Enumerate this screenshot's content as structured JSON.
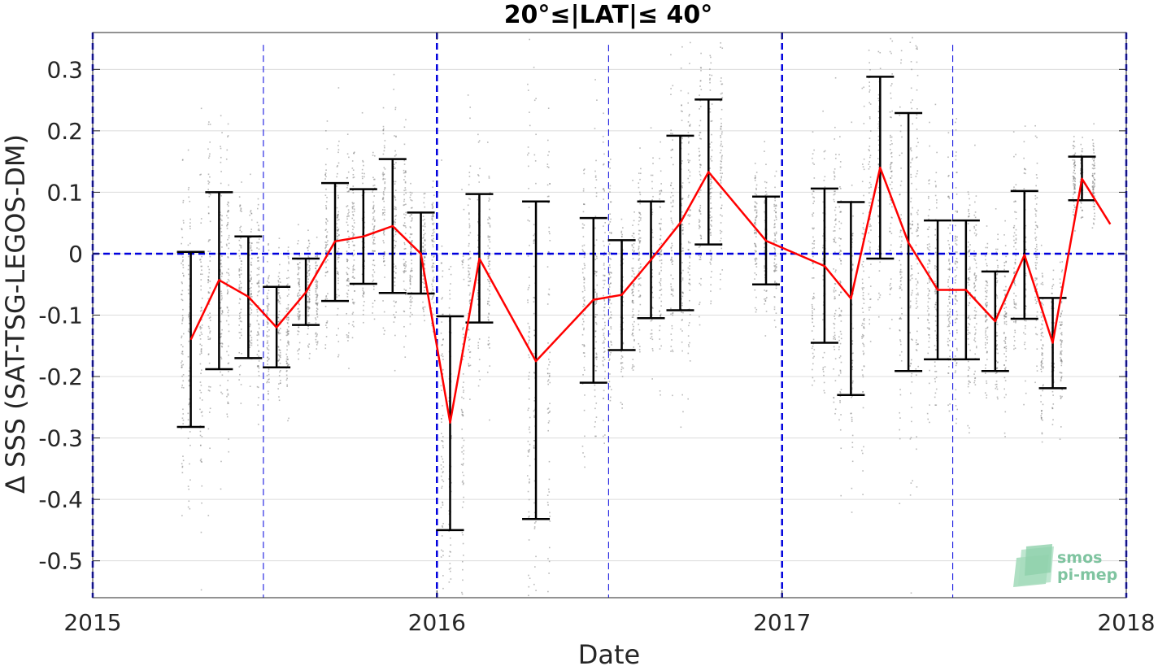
{
  "chart_data": {
    "type": "line",
    "title": "20°≤|LAT|≤ 40°",
    "xlabel": "Date",
    "ylabel": "Δ SSS (SAT-TSG-LEGOS-DM)",
    "xlim": [
      "2015-01-01",
      "2018-01-01"
    ],
    "ylim": [
      -0.56,
      0.36
    ],
    "x_ticks": [
      "2015-01-01",
      "2016-01-01",
      "2017-01-01",
      "2018-01-01"
    ],
    "x_tick_labels": [
      "2015",
      "2016",
      "2017",
      "2018"
    ],
    "y_ticks": [
      -0.5,
      -0.4,
      -0.3,
      -0.2,
      -0.1,
      0,
      0.1,
      0.2,
      0.3
    ],
    "y_tick_labels": [
      "-0.5",
      "-0.4",
      "-0.3",
      "-0.2",
      "-0.1",
      "0",
      "0.1",
      "0.2",
      "0.3"
    ],
    "grid": true,
    "reference_line_y": 0,
    "year_lines": [
      "2015-01-01",
      "2016-01-01",
      "2017-01-01",
      "2018-01-01"
    ],
    "half_year_lines": [
      "2015-07-01",
      "2016-07-01",
      "2017-07-01"
    ],
    "colors": {
      "mean_line": "#ff0000",
      "error_bars": "#000000",
      "reference_lines": "#0000dd",
      "scatter": "#808080",
      "grid": "#dcdcdc"
    },
    "series": [
      {
        "type": "line_with_errorbars",
        "points": [
          {
            "x": "2015-04-15",
            "y": -0.14,
            "low": -0.282,
            "high": 0.003
          },
          {
            "x": "2015-05-15",
            "y": -0.043,
            "low": -0.188,
            "high": 0.1
          },
          {
            "x": "2015-06-15",
            "y": -0.07,
            "low": -0.17,
            "high": 0.028
          },
          {
            "x": "2015-07-15",
            "y": -0.12,
            "low": -0.185,
            "high": -0.054
          },
          {
            "x": "2015-08-15",
            "y": -0.063,
            "low": -0.116,
            "high": -0.008
          },
          {
            "x": "2015-09-15",
            "y": 0.02,
            "low": -0.077,
            "high": 0.115
          },
          {
            "x": "2015-10-15",
            "y": 0.028,
            "low": -0.049,
            "high": 0.105
          },
          {
            "x": "2015-11-15",
            "y": 0.045,
            "low": -0.064,
            "high": 0.154
          },
          {
            "x": "2015-12-15",
            "y": 0.0,
            "low": -0.065,
            "high": 0.067
          },
          {
            "x": "2016-01-15",
            "y": -0.275,
            "low": -0.45,
            "high": -0.102
          },
          {
            "x": "2016-02-15",
            "y": -0.008,
            "low": -0.112,
            "high": 0.097
          },
          {
            "x": "2016-04-15",
            "y": -0.175,
            "low": -0.432,
            "high": 0.085
          },
          {
            "x": "2016-06-15",
            "y": -0.075,
            "low": -0.21,
            "high": 0.058
          },
          {
            "x": "2016-07-15",
            "y": -0.067,
            "low": -0.157,
            "high": 0.022
          },
          {
            "x": "2016-08-15",
            "y": -0.01,
            "low": -0.105,
            "high": 0.085
          },
          {
            "x": "2016-09-15",
            "y": 0.05,
            "low": -0.092,
            "high": 0.192
          },
          {
            "x": "2016-10-15",
            "y": 0.133,
            "low": 0.015,
            "high": 0.251
          },
          {
            "x": "2016-12-15",
            "y": 0.021,
            "low": -0.05,
            "high": 0.093
          },
          {
            "x": "2017-02-15",
            "y": -0.02,
            "low": -0.145,
            "high": 0.106
          },
          {
            "x": "2017-03-15",
            "y": -0.073,
            "low": -0.23,
            "high": 0.084
          },
          {
            "x": "2017-04-15",
            "y": 0.14,
            "low": -0.008,
            "high": 0.288
          },
          {
            "x": "2017-05-15",
            "y": 0.018,
            "low": -0.191,
            "high": 0.229
          },
          {
            "x": "2017-06-15",
            "y": -0.059,
            "low": -0.172,
            "high": 0.054
          },
          {
            "x": "2017-07-15",
            "y": -0.059,
            "low": -0.172,
            "high": 0.054
          },
          {
            "x": "2017-08-15",
            "y": -0.11,
            "low": -0.191,
            "high": -0.029
          },
          {
            "x": "2017-09-15",
            "y": -0.002,
            "low": -0.106,
            "high": 0.102
          },
          {
            "x": "2017-10-15",
            "y": -0.145,
            "low": -0.219,
            "high": -0.072
          },
          {
            "x": "2017-11-15",
            "y": 0.122,
            "low": 0.087,
            "high": 0.158
          },
          {
            "x": "2017-12-15",
            "y": 0.048,
            "low": null,
            "high": null
          }
        ]
      }
    ],
    "logo": {
      "line1": "smos",
      "line2": "pi-mep"
    }
  }
}
